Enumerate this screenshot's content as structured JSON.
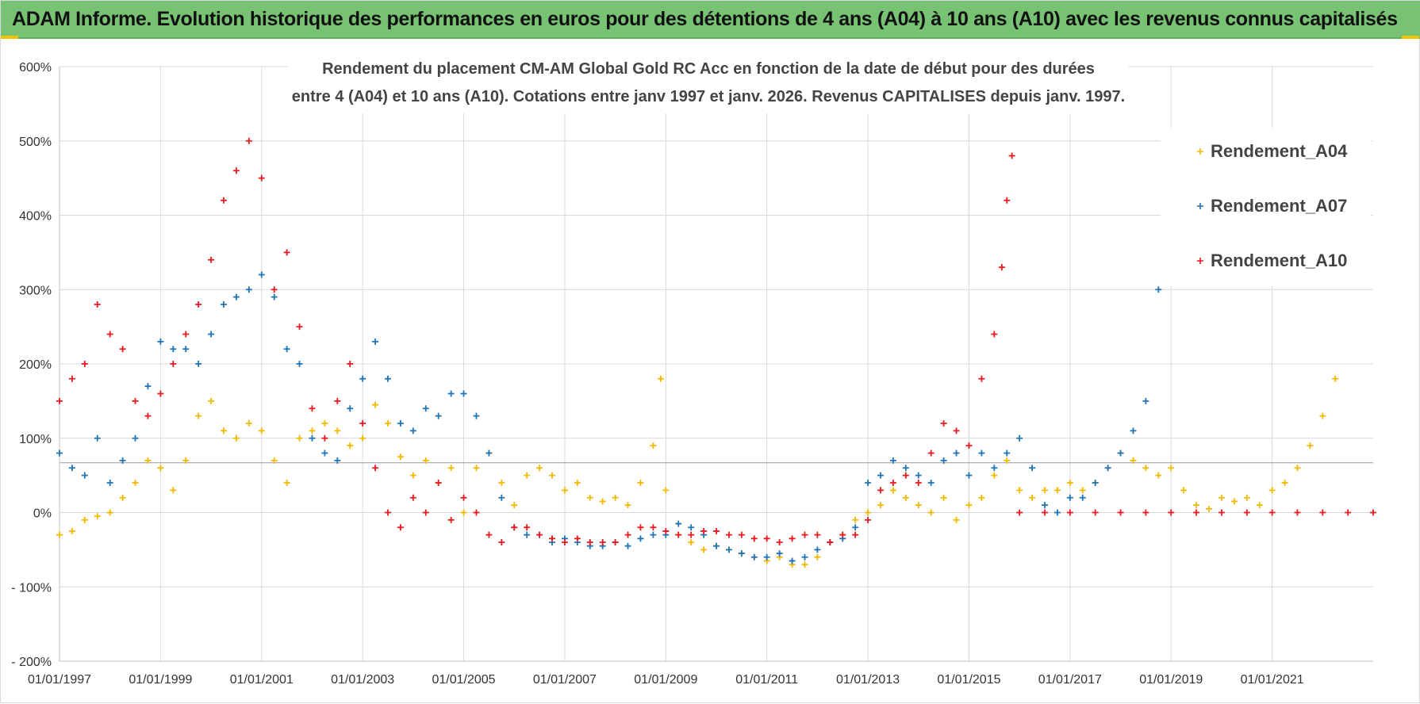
{
  "header": {
    "banner_title": "ADAM Informe. Evolution historique des performances en euros pour des détentions de 4 ans (A04) à 10 ans (A10) avec les revenus connus capitalisés",
    "banner_color": "#77c373",
    "accent_color": "#f2c300"
  },
  "chart_data": {
    "type": "scatter",
    "title_lines": [
      "Rendement du placement CM-AM Global Gold RC Acc en fonction de la date de début pour des durées",
      "entre 4 (A04) et 10 ans (A10). Cotations entre janv 1997 et janv. 2026. Revenus CAPITALISES depuis janv. 1997."
    ],
    "xlabel": "",
    "ylabel": "",
    "x_range": [
      1997.0,
      2023.0
    ],
    "ylim": [
      -200,
      600
    ],
    "y_ticks": [
      -200,
      -100,
      0,
      100,
      200,
      300,
      400,
      500,
      600
    ],
    "y_tick_labels": [
      "- 200%",
      "- 100%",
      "0%",
      "100%",
      "200%",
      "300%",
      "400%",
      "500%",
      "600%"
    ],
    "x_ticks": [
      1997,
      1999,
      2001,
      2003,
      2005,
      2007,
      2009,
      2011,
      2013,
      2015,
      2017,
      2019,
      2021
    ],
    "x_tick_labels": [
      "01/01/1997",
      "01/01/1999",
      "01/01/2001",
      "01/01/2003",
      "01/01/2005",
      "01/01/2007",
      "01/01/2009",
      "01/01/2011",
      "01/01/2013",
      "01/01/2015",
      "01/01/2017",
      "01/01/2019",
      "01/01/2021"
    ],
    "extra_reference_line": 67,
    "grid": true,
    "legend_position": "top-right",
    "marker": "+",
    "series": [
      {
        "name": "Rendement_A04",
        "color": "#f5b800",
        "x": [
          1997.0,
          1997.25,
          1997.5,
          1997.75,
          1998.0,
          1998.25,
          1998.5,
          1998.75,
          1999.0,
          1999.25,
          1999.5,
          1999.75,
          2000.0,
          2000.25,
          2000.5,
          2000.75,
          2001.0,
          2001.25,
          2001.5,
          2001.75,
          2002.0,
          2002.25,
          2002.5,
          2002.75,
          2003.0,
          2003.25,
          2003.5,
          2003.75,
          2004.0,
          2004.25,
          2004.5,
          2004.75,
          2005.0,
          2005.25,
          2005.5,
          2005.75,
          2006.0,
          2006.25,
          2006.5,
          2006.75,
          2007.0,
          2007.25,
          2007.5,
          2007.75,
          2008.0,
          2008.25,
          2008.5,
          2008.75,
          2008.9,
          2009.0,
          2009.25,
          2009.5,
          2009.75,
          2010.0,
          2010.25,
          2010.5,
          2010.75,
          2011.0,
          2011.25,
          2011.5,
          2011.75,
          2012.0,
          2012.25,
          2012.5,
          2012.75,
          2013.0,
          2013.25,
          2013.5,
          2013.75,
          2014.0,
          2014.25,
          2014.5,
          2014.75,
          2015.0,
          2015.25,
          2015.5,
          2015.75,
          2016.0,
          2016.25,
          2016.5,
          2016.75,
          2017.0,
          2017.25,
          2017.5,
          2017.75,
          2018.0,
          2018.25,
          2018.5,
          2018.75,
          2019.0,
          2019.25,
          2019.5,
          2019.75,
          2020.0,
          2020.25,
          2020.5,
          2020.75,
          2021.0,
          2021.25,
          2021.5,
          2021.75,
          2022.0,
          2022.25
        ],
        "y": [
          -30,
          -25,
          -10,
          -5,
          0,
          20,
          40,
          70,
          60,
          30,
          70,
          130,
          150,
          110,
          100,
          120,
          110,
          70,
          40,
          100,
          110,
          120,
          110,
          90,
          100,
          145,
          120,
          75,
          50,
          70,
          40,
          60,
          0,
          60,
          80,
          40,
          10,
          50,
          60,
          50,
          30,
          40,
          20,
          15,
          20,
          10,
          40,
          90,
          180,
          30,
          -30,
          -40,
          -50,
          -45,
          -50,
          -55,
          -60,
          -65,
          -60,
          -70,
          -70,
          -60,
          -40,
          -30,
          -10,
          0,
          10,
          30,
          20,
          10,
          0,
          20,
          -10,
          10,
          20,
          50,
          70,
          30,
          20,
          30,
          30,
          40,
          30,
          40,
          60,
          80,
          70,
          60,
          50,
          60,
          30,
          10,
          5,
          20,
          15,
          20,
          10,
          30,
          40,
          60,
          90,
          130,
          180
        ]
      },
      {
        "name": "Rendement_A07",
        "color": "#1f73b7",
        "x": [
          1997.0,
          1997.25,
          1997.5,
          1997.75,
          1998.0,
          1998.25,
          1998.5,
          1998.75,
          1999.0,
          1999.25,
          1999.5,
          1999.75,
          2000.0,
          2000.25,
          2000.5,
          2000.75,
          2001.0,
          2001.25,
          2001.5,
          2001.75,
          2002.0,
          2002.25,
          2002.5,
          2002.75,
          2003.0,
          2003.25,
          2003.5,
          2003.75,
          2004.0,
          2004.25,
          2004.5,
          2004.75,
          2005.0,
          2005.25,
          2005.5,
          2005.75,
          2006.0,
          2006.25,
          2006.5,
          2006.75,
          2007.0,
          2007.25,
          2007.5,
          2007.75,
          2008.0,
          2008.25,
          2008.5,
          2008.75,
          2009.0,
          2009.25,
          2009.5,
          2009.75,
          2010.0,
          2010.25,
          2010.5,
          2010.75,
          2011.0,
          2011.25,
          2011.5,
          2011.75,
          2012.0,
          2012.25,
          2012.5,
          2012.75,
          2013.0,
          2013.25,
          2013.5,
          2013.75,
          2014.0,
          2014.25,
          2014.5,
          2014.75,
          2015.0,
          2015.25,
          2015.5,
          2015.75,
          2016.0,
          2016.25,
          2016.5,
          2016.75,
          2017.0,
          2017.25,
          2017.5,
          2017.75,
          2018.0,
          2018.25,
          2018.5,
          2018.75
        ],
        "y": [
          80,
          60,
          50,
          100,
          40,
          70,
          100,
          170,
          230,
          220,
          220,
          200,
          240,
          280,
          290,
          300,
          320,
          290,
          220,
          200,
          100,
          80,
          70,
          140,
          180,
          230,
          180,
          120,
          110,
          140,
          130,
          160,
          160,
          130,
          80,
          20,
          -20,
          -30,
          -30,
          -40,
          -35,
          -40,
          -45,
          -45,
          -40,
          -45,
          -35,
          -30,
          -30,
          -15,
          -20,
          -30,
          -45,
          -50,
          -55,
          -60,
          -60,
          -55,
          -65,
          -60,
          -50,
          -40,
          -35,
          -20,
          40,
          50,
          70,
          60,
          50,
          40,
          70,
          80,
          50,
          80,
          60,
          80,
          100,
          60,
          10,
          0,
          20,
          20,
          40,
          60,
          80,
          110,
          150,
          300
        ]
      },
      {
        "name": "Rendement_A10",
        "color": "#e8181c",
        "x": [
          1997.0,
          1997.25,
          1997.5,
          1997.75,
          1998.0,
          1998.25,
          1998.5,
          1998.75,
          1999.0,
          1999.25,
          1999.5,
          1999.75,
          2000.0,
          2000.25,
          2000.5,
          2000.75,
          2001.0,
          2001.25,
          2001.5,
          2001.75,
          2002.0,
          2002.25,
          2002.5,
          2002.75,
          2003.0,
          2003.25,
          2003.5,
          2003.75,
          2004.0,
          2004.25,
          2004.5,
          2004.75,
          2005.0,
          2005.25,
          2005.5,
          2005.75,
          2006.0,
          2006.25,
          2006.5,
          2006.75,
          2007.0,
          2007.25,
          2007.5,
          2007.75,
          2008.0,
          2008.25,
          2008.5,
          2008.75,
          2009.0,
          2009.25,
          2009.5,
          2009.75,
          2010.0,
          2010.25,
          2010.5,
          2010.75,
          2011.0,
          2011.25,
          2011.5,
          2011.75,
          2012.0,
          2012.25,
          2012.5,
          2012.75,
          2013.0,
          2013.25,
          2013.5,
          2013.75,
          2014.0,
          2014.25,
          2014.5,
          2014.75,
          2015.0,
          2015.25,
          2015.5,
          2015.65,
          2015.75,
          2015.85,
          2016.0,
          2016.5,
          2017.0,
          2017.5,
          2018.0,
          2018.5,
          2019.0,
          2019.5,
          2020.0,
          2020.5,
          2021.0,
          2021.5,
          2022.0,
          2022.5,
          2023.0
        ],
        "y": [
          150,
          180,
          200,
          280,
          240,
          220,
          150,
          130,
          160,
          200,
          240,
          280,
          340,
          420,
          460,
          500,
          450,
          300,
          350,
          250,
          140,
          100,
          150,
          200,
          120,
          60,
          0,
          -20,
          20,
          0,
          40,
          -10,
          20,
          0,
          -30,
          -40,
          -20,
          -20,
          -30,
          -35,
          -40,
          -35,
          -40,
          -40,
          -40,
          -30,
          -20,
          -20,
          -25,
          -30,
          -30,
          -25,
          -25,
          -30,
          -30,
          -35,
          -35,
          -40,
          -35,
          -30,
          -30,
          -40,
          -30,
          -30,
          -10,
          30,
          40,
          50,
          40,
          80,
          120,
          110,
          90,
          180,
          240,
          330,
          420,
          480,
          0,
          0,
          0,
          0,
          0,
          0,
          0,
          0,
          0,
          0,
          0,
          0,
          0,
          0,
          0
        ]
      }
    ]
  }
}
